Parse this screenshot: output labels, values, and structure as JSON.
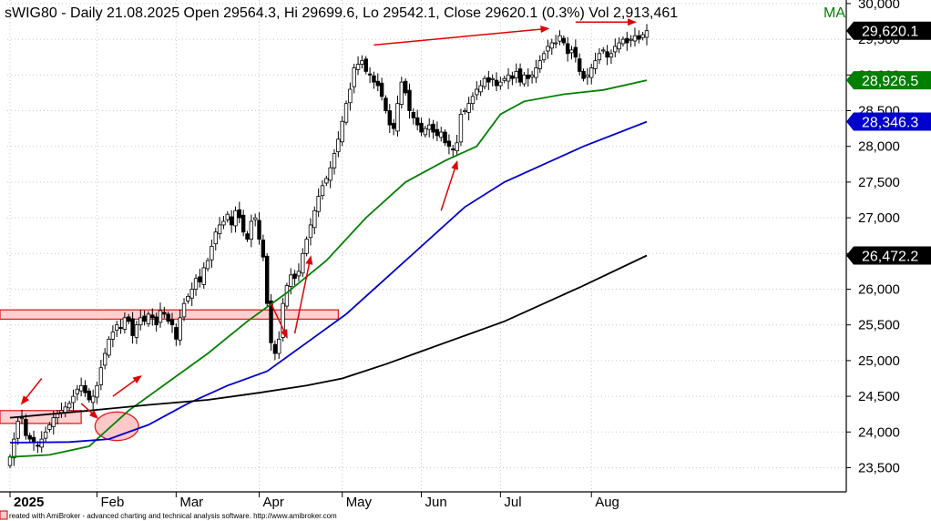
{
  "chart_data": {
    "type": "candlestick",
    "title": "sWIG80 - Daily 21.08.2025 Open 29564.3, Hi 29699.6, Lo 29542.1, Close 29620.1 (0.3%) Vol 2,913,461",
    "title_suffix": "MA",
    "footer": "reated with AmiBroker - advanced charting and technical analysis software. http://www.amibroker.com",
    "ylim": [
      23200,
      30050
    ],
    "y_ticks": [
      23500,
      24000,
      24500,
      25000,
      25500,
      26000,
      26500,
      27000,
      27500,
      28000,
      28500,
      29000,
      29500,
      30000
    ],
    "y_tick_labels": [
      "23,500",
      "24,000",
      "24,500",
      "25,000",
      "25,500",
      "26,000",
      "26,500",
      "27,000",
      "27,500",
      "28,000",
      "28,500",
      "29,000",
      "29,500",
      "30,000"
    ],
    "months": [
      {
        "label": "2025",
        "day": 0,
        "bold": true
      },
      {
        "label": "Feb",
        "day": 22,
        "bold": false
      },
      {
        "label": "Mar",
        "day": 42,
        "bold": false
      },
      {
        "label": "Apr",
        "day": 63,
        "bold": false
      },
      {
        "label": "May",
        "day": 84,
        "bold": false
      },
      {
        "label": "Jun",
        "day": 104,
        "bold": false
      },
      {
        "label": "Jul",
        "day": 124,
        "bold": false
      },
      {
        "label": "Aug",
        "day": 147,
        "bold": false
      }
    ],
    "total_days": 162,
    "closes": [
      23650,
      23900,
      24150,
      24200,
      23950,
      23900,
      23850,
      23800,
      23900,
      24000,
      24100,
      24200,
      24250,
      24300,
      24350,
      24400,
      24500,
      24600,
      24650,
      24550,
      24450,
      24500,
      24650,
      24900,
      25100,
      25300,
      25400,
      25500,
      25450,
      25600,
      25550,
      25350,
      25500,
      25600,
      25550,
      25650,
      25600,
      25500,
      25700,
      25650,
      25550,
      25500,
      25300,
      25600,
      25800,
      25900,
      26000,
      26150,
      26100,
      26300,
      26400,
      26600,
      26800,
      26900,
      26950,
      27050,
      26900,
      27100,
      27000,
      26800,
      26700,
      26950,
      27000,
      26700,
      26450,
      25800,
      25250,
      25100,
      25300,
      25800,
      26050,
      26200,
      26150,
      26250,
      26500,
      26700,
      26900,
      27100,
      27300,
      27450,
      27550,
      27700,
      27900,
      28100,
      28350,
      28600,
      28800,
      29100,
      29150,
      29200,
      29050,
      29000,
      28900,
      28850,
      28700,
      28500,
      28300,
      28250,
      28600,
      28900,
      28750,
      28500,
      28400,
      28300,
      28200,
      28250,
      28300,
      28200,
      28150,
      28200,
      28050,
      28000,
      27950,
      28050,
      28450,
      28500,
      28600,
      28700,
      28800,
      28850,
      28950,
      28900,
      28950,
      28850,
      28900,
      28950,
      29000,
      28950,
      29050,
      28900,
      29000,
      28950,
      29000,
      29100,
      29200,
      29300,
      29400,
      29450,
      29450,
      29550,
      29450,
      29300,
      29350,
      29250,
      29050,
      28950,
      29000,
      29100,
      29200,
      29300,
      29350,
      29250,
      29300,
      29400,
      29450,
      29500,
      29450,
      29500,
      29550,
      29500,
      29564,
      29620
    ],
    "series": [
      {
        "name": "",
        "color": "#008000",
        "label": "28,926.5",
        "points": [
          [
            0,
            23650
          ],
          [
            10,
            23680
          ],
          [
            20,
            23800
          ],
          [
            30,
            24300
          ],
          [
            40,
            24700
          ],
          [
            50,
            25100
          ],
          [
            60,
            25550
          ],
          [
            70,
            25950
          ],
          [
            80,
            26400
          ],
          [
            90,
            27000
          ],
          [
            100,
            27500
          ],
          [
            110,
            27800
          ],
          [
            118,
            28000
          ],
          [
            124,
            28450
          ],
          [
            130,
            28630
          ],
          [
            140,
            28730
          ],
          [
            150,
            28790
          ],
          [
            161,
            28926.5
          ]
        ]
      },
      {
        "name": "",
        "color": "#0000cc",
        "label": "28,346.3",
        "points": [
          [
            0,
            23850
          ],
          [
            15,
            23860
          ],
          [
            25,
            23900
          ],
          [
            35,
            24100
          ],
          [
            45,
            24400
          ],
          [
            55,
            24650
          ],
          [
            65,
            24850
          ],
          [
            75,
            25250
          ],
          [
            85,
            25650
          ],
          [
            95,
            26150
          ],
          [
            105,
            26650
          ],
          [
            115,
            27150
          ],
          [
            125,
            27500
          ],
          [
            135,
            27750
          ],
          [
            145,
            28000
          ],
          [
            161,
            28346.3
          ]
        ]
      },
      {
        "name": "",
        "color": "#000000",
        "label": "26,472.2",
        "points": [
          [
            0,
            24200
          ],
          [
            20,
            24300
          ],
          [
            35,
            24380
          ],
          [
            50,
            24450
          ],
          [
            63,
            24550
          ],
          [
            75,
            24650
          ],
          [
            84,
            24750
          ],
          [
            95,
            24950
          ],
          [
            105,
            25150
          ],
          [
            115,
            25350
          ],
          [
            125,
            25550
          ],
          [
            135,
            25800
          ],
          [
            145,
            26050
          ],
          [
            161,
            26472.2
          ]
        ]
      }
    ],
    "last_price_label": "29,620.1",
    "annotations": {
      "resistance_zones": [
        {
          "x0": -5,
          "x1": 83,
          "y0": 25580,
          "y1": 25710
        },
        {
          "x0": -5,
          "x1": 18,
          "y0": 24120,
          "y1": 24300
        }
      ],
      "ellipse": {
        "cx": 27,
        "cy": 24080,
        "rx": 5.5,
        "ry": 200
      },
      "arrows": [
        {
          "x1": 8,
          "y1": 24750,
          "x2": 3,
          "y2": 24400
        },
        {
          "x1": 18,
          "y1": 24400,
          "x2": 22,
          "y2": 24200
        },
        {
          "x1": 26,
          "y1": 24500,
          "x2": 33,
          "y2": 24780
        },
        {
          "x1": 66,
          "y1": 25800,
          "x2": 70,
          "y2": 25330
        },
        {
          "x1": 72,
          "y1": 25380,
          "x2": 76,
          "y2": 26450
        },
        {
          "x1": 109,
          "y1": 27100,
          "x2": 113,
          "y2": 27780
        },
        {
          "x1": 92,
          "y1": 29420,
          "x2": 136,
          "y2": 29650
        },
        {
          "x1": 143,
          "y1": 29740,
          "x2": 158,
          "y2": 29740
        }
      ]
    }
  }
}
